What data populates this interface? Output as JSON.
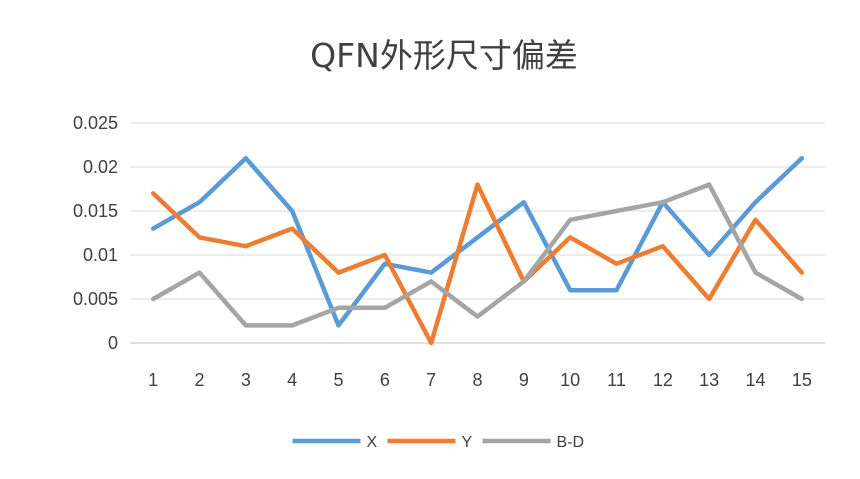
{
  "chart_data": {
    "type": "line",
    "title": "QFN外形尺寸偏差",
    "categories": [
      "1",
      "2",
      "3",
      "4",
      "5",
      "6",
      "7",
      "8",
      "9",
      "10",
      "11",
      "12",
      "13",
      "14",
      "15"
    ],
    "ylim": [
      0,
      0.025
    ],
    "yticks": [
      "0",
      "0.005",
      "0.01",
      "0.015",
      "0.02",
      "0.025"
    ],
    "grid": true,
    "legend_position": "bottom",
    "series": [
      {
        "name": "X",
        "color": "#5b9bd5",
        "values": [
          0.013,
          0.016,
          0.021,
          0.015,
          0.002,
          0.009,
          0.008,
          0.012,
          0.016,
          0.006,
          0.006,
          0.016,
          0.01,
          0.016,
          0.021
        ]
      },
      {
        "name": "Y",
        "color": "#ed7d31",
        "values": [
          0.017,
          0.012,
          0.011,
          0.013,
          0.008,
          0.01,
          0.0,
          0.018,
          0.007,
          0.012,
          0.009,
          0.011,
          0.005,
          0.014,
          0.008
        ]
      },
      {
        "name": "B-D",
        "color": "#a5a5a5",
        "values": [
          0.005,
          0.008,
          0.002,
          0.002,
          0.004,
          0.004,
          0.007,
          0.003,
          0.007,
          0.014,
          0.015,
          0.016,
          0.018,
          0.008,
          0.005
        ]
      }
    ]
  }
}
